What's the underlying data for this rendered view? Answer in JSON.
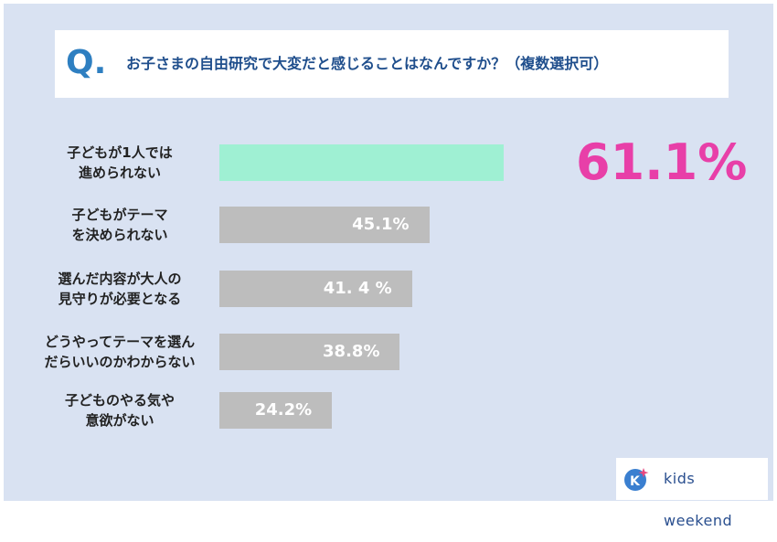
{
  "header": {
    "q_mark": "Q.",
    "question": "お子さまの自由研究で大変だと感じることはなんですか？（複数選択可）"
  },
  "chart_data": {
    "type": "bar",
    "orientation": "horizontal",
    "categories": [
      [
        "子どもが1人では",
        "進められない"
      ],
      [
        "子どもがテーマ",
        "を決められない"
      ],
      [
        "選んだ内容が大人の",
        "見守りが必要となる"
      ],
      [
        "どうやってテーマを選ん",
        "だらいいのかわからない"
      ],
      [
        "子どものやる気や",
        "意欲がない"
      ]
    ],
    "values": [
      61.1,
      45.1,
      41.4,
      38.8,
      24.2
    ],
    "value_labels": [
      "61.1%",
      "45.1%",
      "41. 4 %",
      "38.8%",
      "24.2%"
    ],
    "highlight_index": 0,
    "colors": {
      "highlight": "#9ff0d3",
      "normal": "#bdbdbd",
      "highlight_label": "#e83fa8"
    }
  },
  "logo": {
    "text": "kids weekend"
  }
}
